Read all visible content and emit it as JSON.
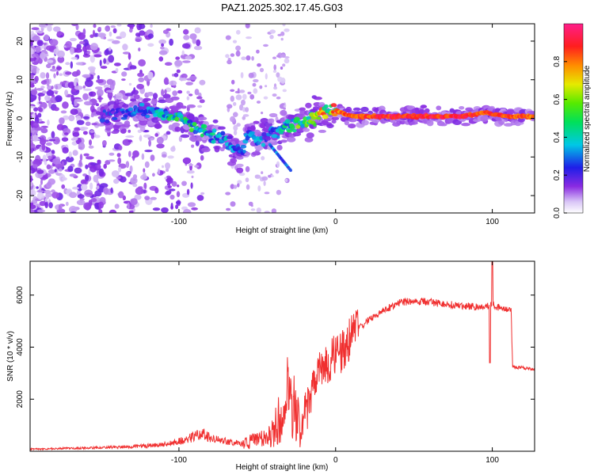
{
  "title": "PAZ1.2025.302.17.45.G03",
  "colors": {
    "snr_line": "#f03030",
    "frame": "#000000",
    "background": "#ffffff"
  },
  "chart_data": [
    {
      "type": "heatmap",
      "xlabel": "Height of straight line (km)",
      "ylabel": "Frequency (Hz)",
      "xlim": [
        -195,
        127
      ],
      "ylim": [
        -24.5,
        24.5
      ],
      "xticks": [
        -100,
        0,
        100
      ],
      "xticklabels": [
        "-100",
        "0",
        "100"
      ],
      "yticks": [
        -20,
        -10,
        0,
        10,
        20
      ],
      "yticklabels": [
        "-20",
        "-10",
        "0",
        "10",
        "20"
      ],
      "colorbar": {
        "label": "Normalized spectral amplitude",
        "range": [
          0,
          1
        ],
        "ticks": [
          0.0,
          0.2,
          0.4,
          0.6,
          0.8
        ],
        "ticklabels": [
          "0.0",
          "0.2",
          "0.4",
          "0.6",
          "0.8"
        ],
        "colormap": "rainbow (lavender→violet→blue→cyan→green→yellow→orange→red→magenta)"
      },
      "ridge": {
        "description": "dominant frequency track vs height",
        "x": [
          -140,
          -120,
          -100,
          -90,
          -80,
          -70,
          -60,
          -55,
          -50,
          -40,
          -30,
          -25,
          -20,
          -10,
          0,
          10,
          40,
          80,
          95,
          110,
          127
        ],
        "y": [
          1,
          2,
          0,
          -2,
          -4,
          -6,
          -9,
          -3,
          -6,
          -4,
          -2,
          -1,
          -1,
          1,
          2,
          0.5,
          0.5,
          0.5,
          1.5,
          0.5,
          0.5
        ],
        "amplitude": [
          0.25,
          0.3,
          0.5,
          0.45,
          0.4,
          0.35,
          0.35,
          0.3,
          0.35,
          0.3,
          0.45,
          0.55,
          0.6,
          0.7,
          0.8,
          0.9,
          0.95,
          0.95,
          0.9,
          0.9,
          0.85
        ]
      }
    },
    {
      "type": "line",
      "xlabel": "Height of straight line (km)",
      "ylabel": "SNR (10 * v/v)",
      "xlim": [
        -195,
        127
      ],
      "ylim": [
        0,
        7300
      ],
      "xticks": [
        -100,
        0,
        100
      ],
      "xticklabels": [
        "-100",
        "0",
        "100"
      ],
      "yticks": [
        2000,
        4000,
        6000
      ],
      "yticklabels": [
        "2000",
        "4000",
        "6000"
      ],
      "series": [
        {
          "name": "SNR",
          "x": [
            -195,
            -170,
            -150,
            -130,
            -110,
            -95,
            -85,
            -80,
            -70,
            -60,
            -50,
            -40,
            -35,
            -30,
            -25,
            -22,
            -20,
            -15,
            -10,
            -5,
            0,
            5,
            10,
            20,
            30,
            40,
            50,
            60,
            70,
            80,
            90,
            95,
            100,
            105,
            110,
            112,
            113,
            120,
            127
          ],
          "y": [
            80,
            110,
            140,
            180,
            250,
            450,
            700,
            500,
            380,
            300,
            420,
            700,
            1400,
            2300,
            1800,
            300,
            1200,
            2400,
            3000,
            3500,
            3700,
            3900,
            4400,
            5000,
            5400,
            5700,
            5780,
            5730,
            5650,
            5600,
            5550,
            5550,
            5650,
            5500,
            5420,
            5400,
            3250,
            3200,
            3150
          ]
        }
      ]
    }
  ]
}
